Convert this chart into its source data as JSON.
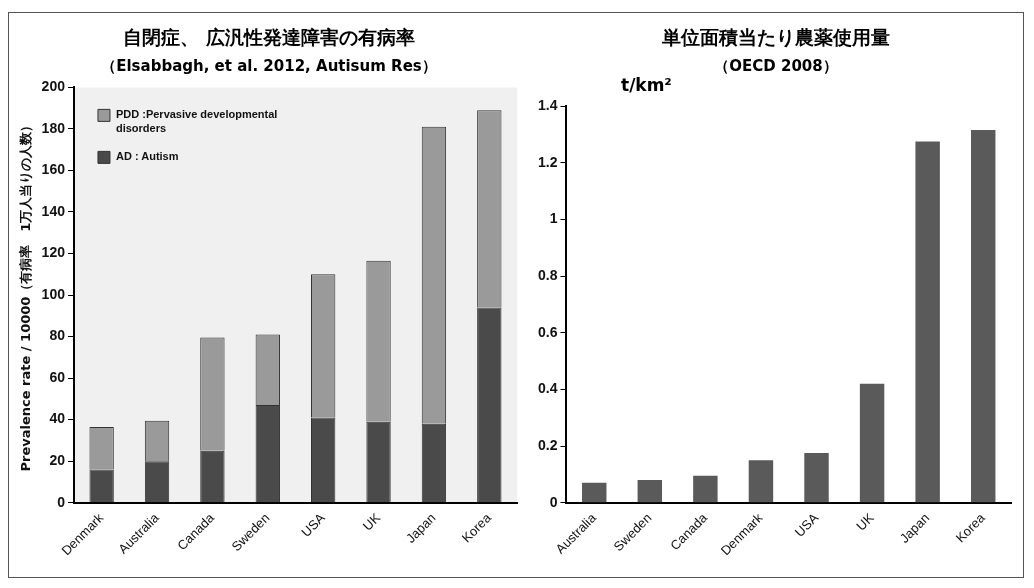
{
  "chart_data": [
    {
      "type": "bar",
      "title": "自閉症、 広汎性発達障害の有病率",
      "subtitle": "（Elsabbagh, et al. 2012, Autisum Res）",
      "ylabel": "Prevalence rate / 10000（有病率　1万人当りの人数）",
      "categories": [
        "Denmark",
        "Australia",
        "Canada",
        "Sweden",
        "USA",
        "UK",
        "Japan",
        "Korea"
      ],
      "stacked": true,
      "series": [
        {
          "name": "AD : Autism",
          "color": "#4a4a4a",
          "values": [
            16,
            20,
            25,
            47,
            41,
            39,
            38,
            94
          ]
        },
        {
          "name": "PDD :Pervasive developmental disorders",
          "color": "#9a9a9a",
          "values": [
            20.5,
            19.5,
            54.5,
            34,
            69,
            77.5,
            143,
            95
          ]
        }
      ],
      "ylim": [
        0,
        200
      ],
      "yticks": [
        0,
        20,
        40,
        60,
        80,
        100,
        120,
        140,
        160,
        180,
        200
      ],
      "grid": false,
      "legend": "top left"
    },
    {
      "type": "bar",
      "title": "単位面積当たり農薬使用量",
      "subtitle": "（OECD 2008）",
      "ylabel": "t/km²",
      "categories": [
        "Australia",
        "Sweden",
        "Canada",
        "Denmark",
        "USA",
        "UK",
        "Japan",
        "Korea"
      ],
      "values": [
        0.07,
        0.08,
        0.095,
        0.15,
        0.175,
        0.42,
        1.275,
        1.315
      ],
      "color": "#5a5a5a",
      "ylim": [
        0,
        1.4
      ],
      "yticks": [
        0,
        0.2,
        0.4,
        0.6,
        0.8,
        1,
        1.2,
        1.4
      ],
      "grid": false
    }
  ]
}
